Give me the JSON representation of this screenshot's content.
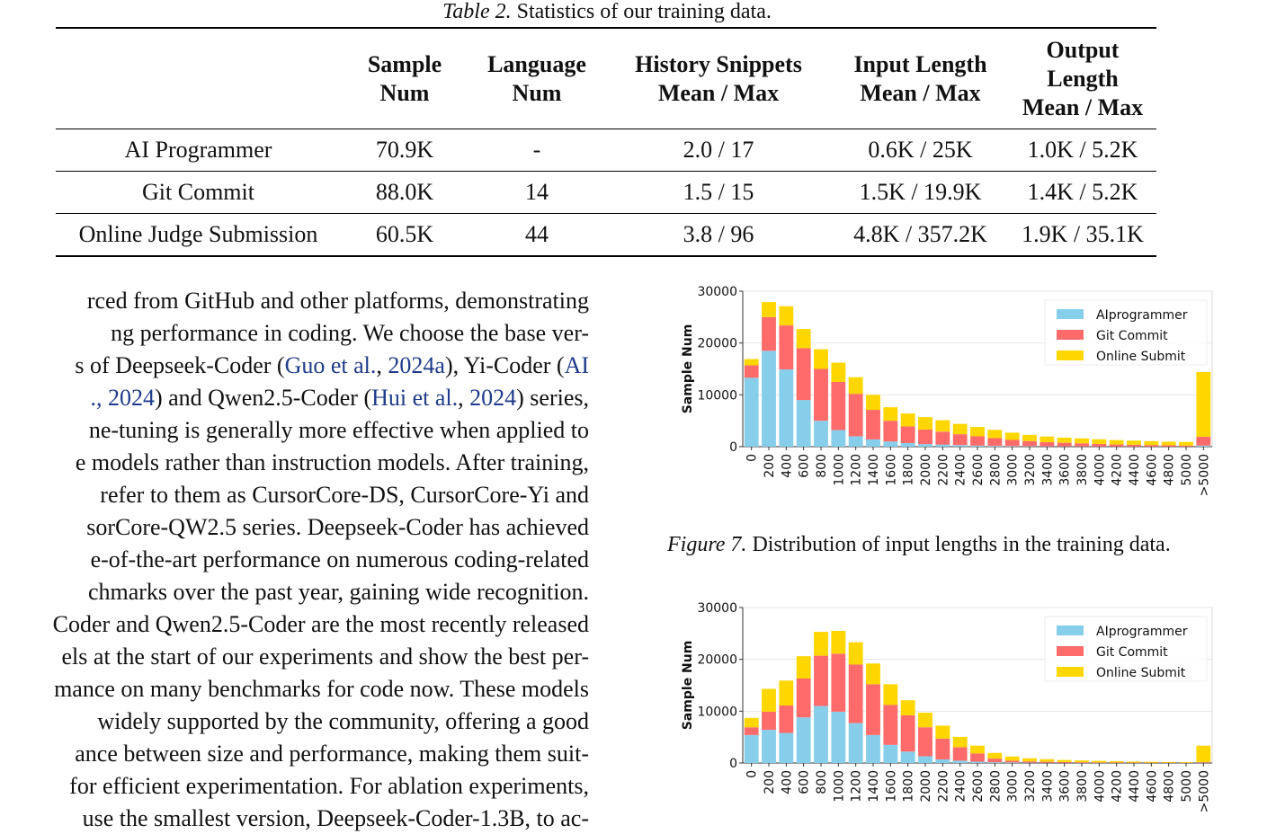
{
  "table": {
    "caption_label": "Table 2.",
    "caption_text": "Statistics of our training data.",
    "headers": [
      {
        "line1": "",
        "line2": ""
      },
      {
        "line1": "Sample",
        "line2": "Num"
      },
      {
        "line1": "Language",
        "line2": "Num"
      },
      {
        "line1": "History Snippets",
        "line2": "Mean / Max"
      },
      {
        "line1": "Input Length",
        "line2": "Mean / Max"
      },
      {
        "line1": "Output Length",
        "line2": "Mean / Max"
      }
    ],
    "rows": [
      [
        "AI Programmer",
        "70.9K",
        "-",
        "2.0 / 17",
        "0.6K / 25K",
        "1.0K / 5.2K"
      ],
      [
        "Git Commit",
        "88.0K",
        "14",
        "1.5 / 15",
        "1.5K / 19.9K",
        "1.4K / 5.2K"
      ],
      [
        "Online Judge Submission",
        "60.5K",
        "44",
        "3.8 / 96",
        "4.8K / 357.2K",
        "1.9K / 35.1K"
      ]
    ]
  },
  "body_text": {
    "lines": [
      [
        {
          "t": "rced from GitHub and other platforms, demonstrating"
        }
      ],
      [
        {
          "t": "ng performance in coding.  We choose the base ver-"
        }
      ],
      [
        {
          "t": "s of Deepseek-Coder ("
        },
        {
          "t": "Guo et al.",
          "cite": true
        },
        {
          "t": ", "
        },
        {
          "t": "2024a",
          "cite": true
        },
        {
          "t": "), Yi-Coder ("
        },
        {
          "t": "AI",
          "cite": true
        }
      ],
      [
        {
          "t": "., 2024",
          "cite": true
        },
        {
          "t": ") and Qwen2.5-Coder ("
        },
        {
          "t": "Hui et al.",
          "cite": true
        },
        {
          "t": ", "
        },
        {
          "t": "2024",
          "cite": true
        },
        {
          "t": ") series,"
        }
      ],
      [
        {
          "t": "ne-tuning is generally more effective when applied to"
        }
      ],
      [
        {
          "t": "e models rather than instruction models. After training,"
        }
      ],
      [
        {
          "t": "refer to them as CursorCore-DS, CursorCore-Yi and"
        }
      ],
      [
        {
          "t": "sorCore-QW2.5 series. Deepseek-Coder has achieved"
        }
      ],
      [
        {
          "t": "e-of-the-art performance on numerous coding-related"
        }
      ],
      [
        {
          "t": "chmarks over the past year, gaining wide recognition."
        }
      ],
      [
        {
          "t": "Coder and Qwen2.5-Coder are the most recently released"
        }
      ],
      [
        {
          "t": "els at the start of our experiments and show the best per-"
        }
      ],
      [
        {
          "t": "mance on many benchmarks for code now. These models"
        }
      ],
      [
        {
          "t": "widely supported by the community, offering a good"
        }
      ],
      [
        {
          "t": "ance between size and performance, making them suit-"
        }
      ],
      [
        {
          "t": " for efficient experimentation. For ablation experiments,"
        }
      ],
      [
        {
          "t": "use the smallest version, Deepseek-Coder-1.3B, to ac-"
        }
      ]
    ]
  },
  "figure7": {
    "caption_label": "Figure 7.",
    "caption_text": "Distribution of input lengths in the training data."
  },
  "chart_data": [
    {
      "type": "bar",
      "stacked": true,
      "ylabel": "Sample Num",
      "ylim": [
        0,
        30000
      ],
      "yticks": [
        0,
        10000,
        20000,
        30000
      ],
      "legend_position": "top-right",
      "categories": [
        "0",
        "200",
        "400",
        "600",
        "800",
        "1000",
        "1200",
        "1400",
        "1600",
        "1800",
        "2000",
        "2200",
        "2400",
        "2600",
        "2800",
        "3000",
        "3200",
        "3400",
        "3600",
        "3800",
        "4000",
        "4200",
        "4400",
        "4600",
        "4800",
        "5000",
        ">5000"
      ],
      "series": [
        {
          "name": "AIprogrammer",
          "color": "#87ceeb",
          "values": [
            13300,
            18500,
            14900,
            9000,
            5000,
            3200,
            2000,
            1400,
            1000,
            700,
            500,
            400,
            300,
            200,
            150,
            100,
            80,
            60,
            50,
            40,
            30,
            20,
            20,
            10,
            10,
            10,
            200
          ]
        },
        {
          "name": "Git Commit",
          "color": "#ff6b6b",
          "values": [
            2400,
            6500,
            8500,
            10000,
            10000,
            9300,
            8200,
            5700,
            4000,
            3200,
            2800,
            2500,
            2100,
            1800,
            1500,
            1200,
            1000,
            800,
            700,
            600,
            500,
            400,
            350,
            300,
            250,
            200,
            1700
          ]
        },
        {
          "name": "Online Submit",
          "color": "#ffd700",
          "values": [
            1200,
            2900,
            3700,
            3700,
            3800,
            3700,
            3200,
            2900,
            2600,
            2500,
            2400,
            2200,
            2000,
            1800,
            1600,
            1400,
            1200,
            1100,
            1000,
            950,
            900,
            850,
            800,
            750,
            700,
            700,
            12500
          ]
        }
      ]
    },
    {
      "type": "bar",
      "stacked": true,
      "ylabel": "Sample Num",
      "ylim": [
        0,
        30000
      ],
      "yticks": [
        0,
        10000,
        20000,
        30000
      ],
      "legend_position": "top-right",
      "categories": [
        "0",
        "200",
        "400",
        "600",
        "800",
        "1000",
        "1200",
        "1400",
        "1600",
        "1800",
        "2000",
        "2200",
        "2400",
        "2600",
        "2800",
        "3000",
        "3200",
        "3400",
        "3600",
        "3800",
        "4000",
        "4200",
        "4400",
        "4600",
        "4800",
        "5000",
        ">5000"
      ],
      "series": [
        {
          "name": "AIprogrammer",
          "color": "#87ceeb",
          "values": [
            5400,
            6400,
            5800,
            8800,
            11000,
            9900,
            7700,
            5400,
            3500,
            2200,
            1300,
            700,
            450,
            250,
            150,
            100,
            60,
            40,
            30,
            20,
            15,
            10,
            10,
            5,
            5,
            5,
            50
          ]
        },
        {
          "name": "Git Commit",
          "color": "#ff6b6b",
          "values": [
            1500,
            3500,
            5300,
            7500,
            9700,
            11200,
            11300,
            9800,
            7700,
            7000,
            5600,
            4000,
            2600,
            1600,
            700,
            350,
            250,
            200,
            150,
            120,
            100,
            80,
            60,
            50,
            40,
            30,
            100
          ]
        },
        {
          "name": "Online Submit",
          "color": "#ffd700",
          "values": [
            1800,
            4400,
            4800,
            4300,
            4600,
            4400,
            4300,
            4000,
            4000,
            2900,
            2800,
            2500,
            2000,
            1500,
            1100,
            800,
            600,
            500,
            400,
            350,
            300,
            250,
            200,
            170,
            150,
            120,
            3200
          ]
        }
      ]
    }
  ]
}
